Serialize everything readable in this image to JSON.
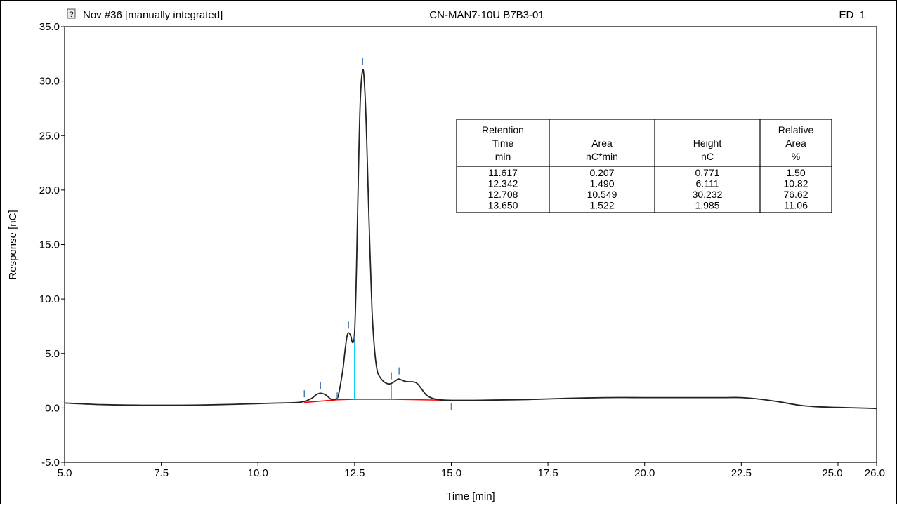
{
  "header": {
    "left_title": "Nov #36 [manually integrated]",
    "center_title": "CN-MAN7-10U B7B3-01",
    "right_title": "ED_1",
    "icon": "question-mark-icon"
  },
  "chart_data": {
    "type": "line",
    "title": "",
    "xlabel": "Time [min]",
    "ylabel": "Response [nC]",
    "xlim": [
      5.0,
      26.0
    ],
    "ylim": [
      -5.0,
      35.0
    ],
    "xticks": [
      "5.0",
      "7.5",
      "10.0",
      "12.5",
      "15.0",
      "17.5",
      "20.0",
      "22.5",
      "25.0",
      "26.0"
    ],
    "xtick_values": [
      5.0,
      7.5,
      10.0,
      12.5,
      15.0,
      17.5,
      20.0,
      22.5,
      25.0,
      26.0
    ],
    "yticks": [
      "35.0",
      "30.0",
      "25.0",
      "20.0",
      "15.0",
      "10.0",
      "5.0",
      "0.0",
      "-5.0"
    ],
    "ytick_values": [
      35.0,
      30.0,
      25.0,
      20.0,
      15.0,
      10.0,
      5.0,
      0.0,
      -5.0
    ],
    "grid": false,
    "colors": {
      "trace": "#222222",
      "baseline": "#ff0000",
      "split": "#00d0f0",
      "marker": "#4a7fb5"
    },
    "trace": {
      "x": [
        5.0,
        6.0,
        7.0,
        8.0,
        9.0,
        10.0,
        10.5,
        11.0,
        11.2,
        11.4,
        11.5,
        11.617,
        11.75,
        11.9,
        12.05,
        12.1,
        12.15,
        12.2,
        12.25,
        12.3,
        12.342,
        12.4,
        12.45,
        12.5,
        12.55,
        12.6,
        12.65,
        12.708,
        12.75,
        12.8,
        12.85,
        12.9,
        12.95,
        13.0,
        13.05,
        13.1,
        13.2,
        13.3,
        13.4,
        13.5,
        13.6,
        13.65,
        13.8,
        13.9,
        14.0,
        14.1,
        14.2,
        14.35,
        14.5,
        14.7,
        15.0,
        15.5,
        16.0,
        17.0,
        18.0,
        19.0,
        20.0,
        21.0,
        22.0,
        22.5,
        23.0,
        23.5,
        24.0,
        24.5,
        25.0,
        25.5,
        26.0
      ],
      "y": [
        0.45,
        0.3,
        0.25,
        0.25,
        0.3,
        0.4,
        0.45,
        0.5,
        0.6,
        0.9,
        1.2,
        1.35,
        1.2,
        0.8,
        0.9,
        1.5,
        2.5,
        3.6,
        5.2,
        6.5,
        6.9,
        6.6,
        6.0,
        7.0,
        13.0,
        22.0,
        28.5,
        31.0,
        30.0,
        26.0,
        20.0,
        14.0,
        9.0,
        6.0,
        4.2,
        3.2,
        2.6,
        2.3,
        2.2,
        2.35,
        2.6,
        2.65,
        2.45,
        2.4,
        2.4,
        2.3,
        1.9,
        1.2,
        0.9,
        0.75,
        0.7,
        0.7,
        0.72,
        0.78,
        0.88,
        0.95,
        0.95,
        0.95,
        0.95,
        0.95,
        0.8,
        0.55,
        0.25,
        0.1,
        0.05,
        0.0,
        -0.05
      ]
    },
    "baseline": {
      "x": [
        11.2,
        12.05,
        12.5,
        13.45,
        15.0
      ],
      "y": [
        0.5,
        0.75,
        0.8,
        0.8,
        0.7
      ]
    },
    "split_lines": [
      {
        "x": 12.5,
        "y": 6.0
      },
      {
        "x": 13.45,
        "y": 2.2
      }
    ],
    "peak_markers": [
      {
        "x": 11.2,
        "y": 1.3
      },
      {
        "x": 11.617,
        "y": 2.05
      },
      {
        "x": 12.05,
        "y": 1.1
      },
      {
        "x": 12.342,
        "y": 7.6
      },
      {
        "x": 12.5,
        "y": 6.3
      },
      {
        "x": 12.708,
        "y": 31.8
      },
      {
        "x": 13.45,
        "y": 2.95
      },
      {
        "x": 13.65,
        "y": 3.4
      },
      {
        "x": 15.0,
        "y": 0.1
      }
    ],
    "peak_table": {
      "headers": [
        [
          "Retention",
          "Time",
          "min"
        ],
        [
          "",
          "Area",
          "nC*min"
        ],
        [
          "",
          "Height",
          "nC"
        ],
        [
          "Relative",
          "Area",
          "%"
        ]
      ],
      "rows": [
        [
          "11.617",
          "0.207",
          "0.771",
          "1.50"
        ],
        [
          "12.342",
          "1.490",
          "6.111",
          "10.82"
        ],
        [
          "12.708",
          "10.549",
          "30.232",
          "76.62"
        ],
        [
          "13.650",
          "1.522",
          "1.985",
          "11.06"
        ]
      ]
    }
  }
}
